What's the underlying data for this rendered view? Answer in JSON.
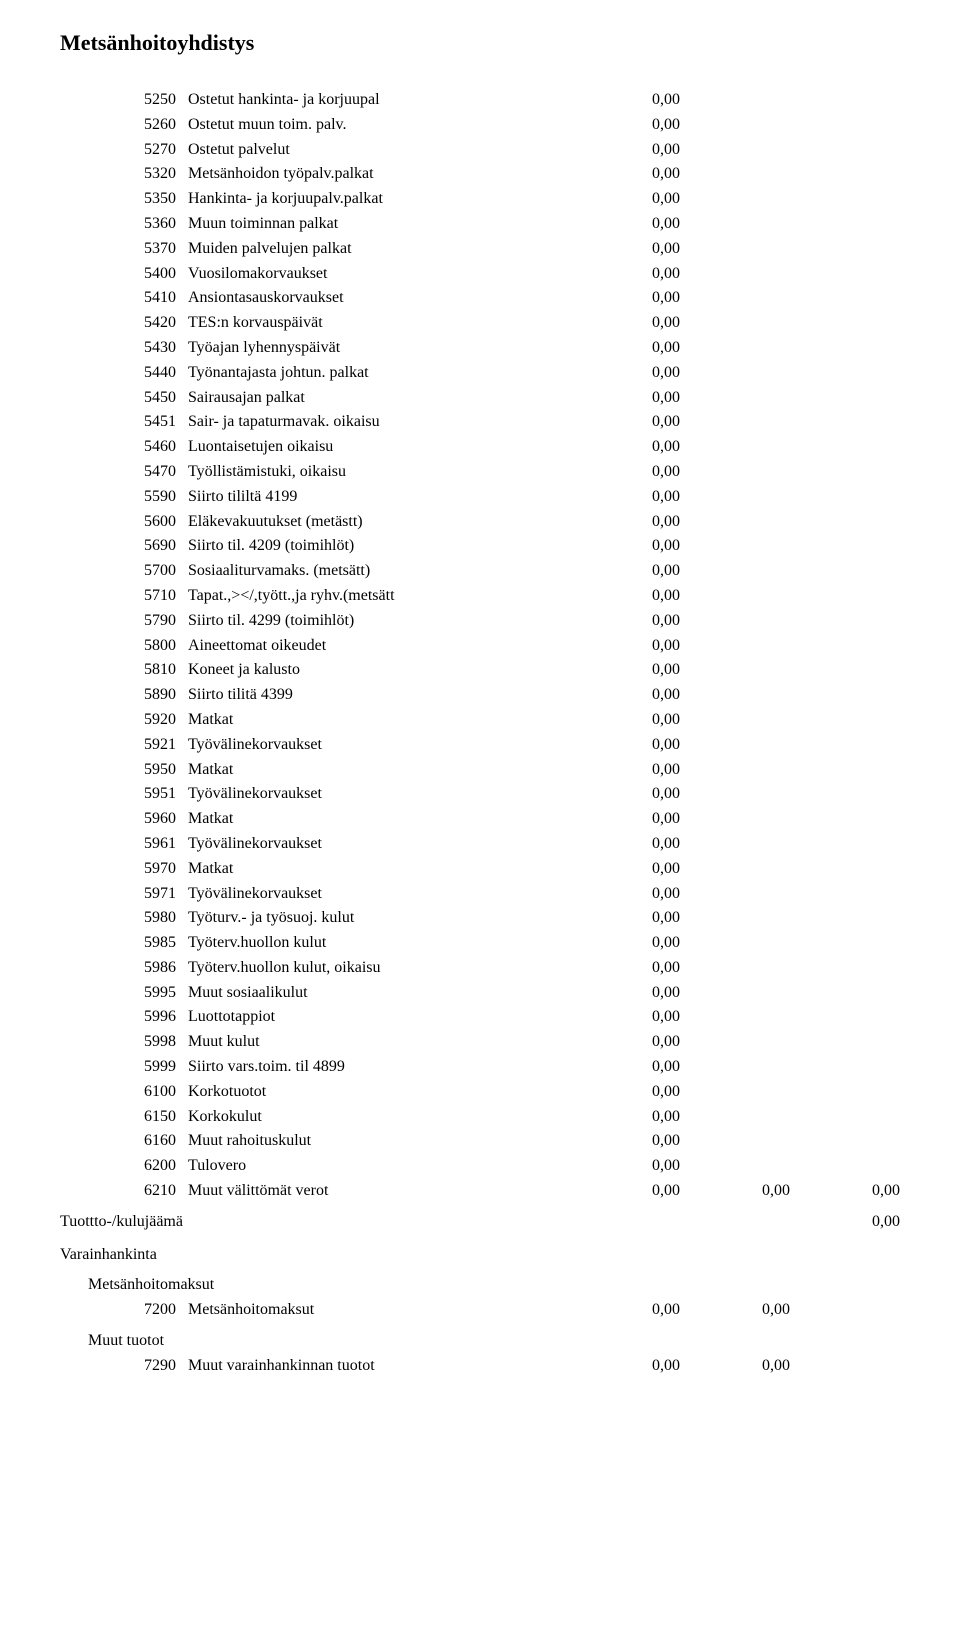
{
  "title": "Metsänhoitoyhdistys",
  "col_widths": {
    "v1": 110,
    "v2": 110,
    "v3": 110
  },
  "items": [
    {
      "code": "5250",
      "label": "Ostetut hankinta- ja korjuupal",
      "v": [
        "0,00"
      ]
    },
    {
      "code": "5260",
      "label": "Ostetut muun toim. palv.",
      "v": [
        "0,00"
      ]
    },
    {
      "code": "5270",
      "label": "Ostetut palvelut",
      "v": [
        "0,00"
      ]
    },
    {
      "code": "5320",
      "label": "Metsänhoidon työpalv.palkat",
      "v": [
        "0,00"
      ]
    },
    {
      "code": "5350",
      "label": "Hankinta- ja korjuupalv.palkat",
      "v": [
        "0,00"
      ]
    },
    {
      "code": "5360",
      "label": "Muun toiminnan palkat",
      "v": [
        "0,00"
      ]
    },
    {
      "code": "5370",
      "label": "Muiden palvelujen palkat",
      "v": [
        "0,00"
      ]
    },
    {
      "code": "5400",
      "label": "Vuosilomakorvaukset",
      "v": [
        "0,00"
      ]
    },
    {
      "code": "5410",
      "label": "Ansiontasauskorvaukset",
      "v": [
        "0,00"
      ]
    },
    {
      "code": "5420",
      "label": "TES:n korvauspäivät",
      "v": [
        "0,00"
      ]
    },
    {
      "code": "5430",
      "label": "Työajan lyhennyspäivät",
      "v": [
        "0,00"
      ]
    },
    {
      "code": "5440",
      "label": "Työnantajasta johtun. palkat",
      "v": [
        "0,00"
      ]
    },
    {
      "code": "5450",
      "label": "Sairausajan palkat",
      "v": [
        "0,00"
      ]
    },
    {
      "code": "5451",
      "label": "Sair- ja tapaturmavak. oikaisu",
      "v": [
        "0,00"
      ]
    },
    {
      "code": "5460",
      "label": "Luontaisetujen oikaisu",
      "v": [
        "0,00"
      ]
    },
    {
      "code": "5470",
      "label": "Työllistämistuki, oikaisu",
      "v": [
        "0,00"
      ]
    },
    {
      "code": "5590",
      "label": "Siirto tililtä 4199",
      "v": [
        "0,00"
      ]
    },
    {
      "code": "5600",
      "label": "Eläkevakuutukset (metästt)",
      "v": [
        "0,00"
      ]
    },
    {
      "code": "5690",
      "label": "Siirto til. 4209 (toimihlöt)",
      "v": [
        "0,00"
      ]
    },
    {
      "code": "5700",
      "label": "Sosiaaliturvamaks. (metsätt)",
      "v": [
        "0,00"
      ]
    },
    {
      "code": "5710",
      "label": "Tapat.,></,tyött.,ja ryhv.(metsätt",
      "v": [
        "0,00"
      ]
    },
    {
      "code": "5790",
      "label": "Siirto til. 4299 (toimihlöt)",
      "v": [
        "0,00"
      ]
    },
    {
      "code": "5800",
      "label": "Aineettomat oikeudet",
      "v": [
        "0,00"
      ]
    },
    {
      "code": "5810",
      "label": "Koneet ja kalusto",
      "v": [
        "0,00"
      ]
    },
    {
      "code": "5890",
      "label": "Siirto tilitä 4399",
      "v": [
        "0,00"
      ]
    },
    {
      "code": "5920",
      "label": "Matkat",
      "v": [
        "0,00"
      ]
    },
    {
      "code": "5921",
      "label": "Työvälinekorvaukset",
      "v": [
        "0,00"
      ]
    },
    {
      "code": "5950",
      "label": "Matkat",
      "v": [
        "0,00"
      ]
    },
    {
      "code": "5951",
      "label": "Työvälinekorvaukset",
      "v": [
        "0,00"
      ]
    },
    {
      "code": "5960",
      "label": "Matkat",
      "v": [
        "0,00"
      ]
    },
    {
      "code": "5961",
      "label": "Työvälinekorvaukset",
      "v": [
        "0,00"
      ]
    },
    {
      "code": "5970",
      "label": "Matkat",
      "v": [
        "0,00"
      ]
    },
    {
      "code": "5971",
      "label": "Työvälinekorvaukset",
      "v": [
        "0,00"
      ]
    },
    {
      "code": "5980",
      "label": "Työturv.- ja työsuoj. kulut",
      "v": [
        "0,00"
      ]
    },
    {
      "code": "5985",
      "label": "Työterv.huollon kulut",
      "v": [
        "0,00"
      ]
    },
    {
      "code": "5986",
      "label": "Työterv.huollon kulut, oikaisu",
      "v": [
        "0,00"
      ]
    },
    {
      "code": "5995",
      "label": "Muut sosiaalikulut",
      "v": [
        "0,00"
      ]
    },
    {
      "code": "5996",
      "label": "Luottotappiot",
      "v": [
        "0,00"
      ]
    },
    {
      "code": "5998",
      "label": "Muut kulut",
      "v": [
        "0,00"
      ]
    },
    {
      "code": "5999",
      "label": "Siirto vars.toim. til 4899",
      "v": [
        "0,00"
      ]
    },
    {
      "code": "6100",
      "label": "Korkotuotot",
      "v": [
        "0,00"
      ]
    },
    {
      "code": "6150",
      "label": "Korkokulut",
      "v": [
        "0,00"
      ]
    },
    {
      "code": "6160",
      "label": "Muut rahoituskulut",
      "v": [
        "0,00"
      ]
    },
    {
      "code": "6200",
      "label": "Tulovero",
      "v": [
        "0,00"
      ]
    },
    {
      "code": "6210",
      "label": "Muut välittömät verot",
      "v": [
        "0,00",
        "0,00",
        "0,00"
      ]
    }
  ],
  "total": {
    "label": "Tuottto-/kulujäämä",
    "value": "0,00"
  },
  "sections": {
    "varainhankinta": "Varainhankinta",
    "metsanhoitomaksut": "Metsänhoitomaksut",
    "muut_tuotot": "Muut tuotot"
  },
  "section_items": [
    {
      "code": "7200",
      "label": "Metsänhoitomaksut",
      "v": [
        "0,00",
        "0,00"
      ]
    }
  ],
  "section_items2": [
    {
      "code": "7290",
      "label": "Muut varainhankinnan tuotot",
      "v": [
        "0,00",
        "0,00"
      ]
    }
  ]
}
